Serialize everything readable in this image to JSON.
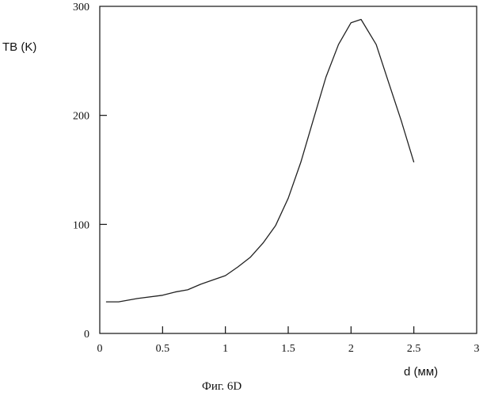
{
  "chart_data": {
    "type": "line",
    "title": "",
    "xlabel": "d (мм)",
    "ylabel": "TB (K)",
    "caption": "Фиг. 6D",
    "xlim": [
      0,
      3
    ],
    "ylim": [
      0,
      300
    ],
    "x_ticks": [
      0,
      0.5,
      1,
      1.5,
      2,
      2.5,
      3
    ],
    "x_tick_labels": [
      "0",
      "0.5",
      "1",
      "1.5",
      "2",
      "2.5",
      "3"
    ],
    "y_ticks": [
      0,
      100,
      200,
      300
    ],
    "y_tick_labels": [
      "0",
      "100",
      "200",
      "300"
    ],
    "grid": false,
    "legend": "none",
    "series": [
      {
        "x": [
          0.05,
          0.15,
          0.3,
          0.5,
          0.6,
          0.7,
          0.8,
          0.9,
          1.0,
          1.1,
          1.2,
          1.3,
          1.4,
          1.5,
          1.6,
          1.7,
          1.8,
          1.9,
          2.0,
          2.08,
          2.2,
          2.3,
          2.4,
          2.5
        ],
        "y": [
          29,
          29,
          32,
          35,
          38,
          40,
          45,
          49,
          53,
          61,
          70,
          83,
          99,
          124,
          157,
          196,
          235,
          265,
          285,
          288,
          265,
          230,
          195,
          157
        ],
        "color": "#222222"
      }
    ]
  }
}
